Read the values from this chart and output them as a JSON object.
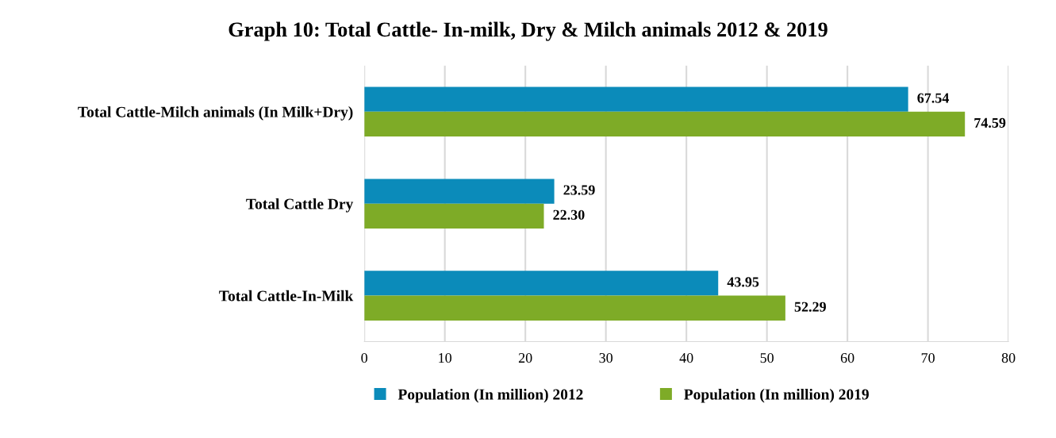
{
  "chart_data": {
    "type": "bar",
    "orientation": "horizontal",
    "title": "Graph 10: Total Cattle- In-milk, Dry & Milch animals 2012 & 2019",
    "categories": [
      "Total Cattle-Milch animals (In Milk+Dry)",
      "Total Cattle Dry",
      "Total Cattle-In-Milk"
    ],
    "series": [
      {
        "name": "Population (In million) 2012",
        "color": "#0b8bba",
        "values": [
          67.54,
          23.59,
          43.95
        ],
        "value_labels": [
          "67.54",
          "23.59",
          "43.95"
        ]
      },
      {
        "name": "Population (In million) 2019",
        "color": "#7eab27",
        "values": [
          74.59,
          22.3,
          52.29
        ],
        "value_labels": [
          "74.59",
          "22.30",
          "52.29"
        ]
      }
    ],
    "xlim": [
      0,
      80
    ],
    "xticks": [
      0,
      10,
      20,
      30,
      40,
      50,
      60,
      70,
      80
    ],
    "grid": "x",
    "legend": "bottom"
  }
}
